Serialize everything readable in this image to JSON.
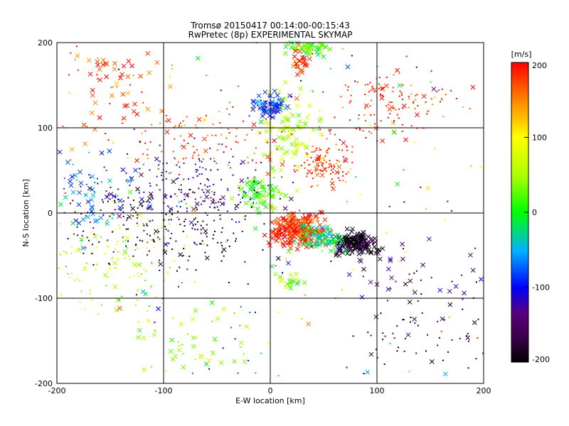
{
  "title_line1": "Tromsø 20150417 00:14:00-00:15:43",
  "title_line2": "RwPretec (8p) EXPERIMENTAL SKYMAP",
  "chart_data": {
    "type": "scatter",
    "xlabel": "E-W location [km]",
    "ylabel": "N-S location [km]",
    "xlim": [
      -200,
      200
    ],
    "ylim": [
      -200,
      200
    ],
    "xticks": [
      "-200",
      "-100",
      "0",
      "100",
      "200"
    ],
    "yticks": [
      "-200",
      "-100",
      "0",
      "100",
      "200"
    ],
    "grid": true,
    "colorbar": {
      "unit": "[m/s]",
      "range": [
        -200,
        200
      ],
      "ticks": [
        "200",
        "100",
        "0",
        "-100",
        "-200"
      ],
      "colormap": "rainbow (black-purple-blue-cyan-green-yellow-orange-red)"
    },
    "markers": [
      "dot",
      "x"
    ],
    "clusters": [
      {
        "x": 25,
        "y": -20,
        "spread": [
          12,
          10
        ],
        "velocity": 190,
        "count": 260,
        "marker": "x"
      },
      {
        "x": 80,
        "y": -35,
        "spread": [
          10,
          6
        ],
        "velocity": -200,
        "count": 200,
        "marker": "x"
      },
      {
        "x": 50,
        "y": -30,
        "spread": [
          10,
          8
        ],
        "velocity": -20,
        "count": 90,
        "marker": "x"
      },
      {
        "x": 0,
        "y": 125,
        "spread": [
          8,
          8
        ],
        "velocity": -90,
        "count": 80,
        "marker": "x"
      },
      {
        "x": 35,
        "y": 195,
        "spread": [
          12,
          5
        ],
        "velocity": 20,
        "count": 70,
        "marker": "x"
      },
      {
        "x": 30,
        "y": 180,
        "spread": [
          5,
          8
        ],
        "velocity": 190,
        "count": 30,
        "marker": "x"
      },
      {
        "x": 50,
        "y": 60,
        "spread": [
          12,
          15
        ],
        "velocity": 190,
        "count": 110,
        "marker": "dot"
      },
      {
        "x": 110,
        "y": 130,
        "spread": [
          30,
          20
        ],
        "velocity": 195,
        "count": 130,
        "marker": "dot"
      },
      {
        "x": 20,
        "y": 100,
        "spread": [
          15,
          20
        ],
        "velocity": 60,
        "count": 90,
        "marker": "x"
      },
      {
        "x": -10,
        "y": 25,
        "spread": [
          12,
          10
        ],
        "velocity": 20,
        "count": 80,
        "marker": "x"
      },
      {
        "x": -95,
        "y": -10,
        "spread": [
          45,
          30
        ],
        "velocity": -190,
        "count": 230,
        "marker": "dot"
      },
      {
        "x": -80,
        "y": 30,
        "spread": [
          40,
          25
        ],
        "velocity": -120,
        "count": 150,
        "marker": "dot"
      },
      {
        "x": -60,
        "y": 80,
        "spread": [
          40,
          25
        ],
        "velocity": 180,
        "count": 120,
        "marker": "dot"
      },
      {
        "x": -150,
        "y": 150,
        "spread": [
          25,
          30
        ],
        "velocity": 175,
        "count": 70,
        "marker": "x"
      },
      {
        "x": -150,
        "y": -50,
        "spread": [
          35,
          30
        ],
        "velocity": 70,
        "count": 140,
        "marker": "dot"
      },
      {
        "x": -170,
        "y": 20,
        "spread": [
          20,
          30
        ],
        "velocity": -60,
        "count": 60,
        "marker": "x"
      },
      {
        "x": -70,
        "y": -150,
        "spread": [
          30,
          25
        ],
        "velocity": 40,
        "count": 50,
        "marker": "x"
      },
      {
        "x": 150,
        "y": -130,
        "spread": [
          35,
          25
        ],
        "velocity": -180,
        "count": 60,
        "marker": "dot"
      },
      {
        "x": 120,
        "y": -70,
        "spread": [
          40,
          20
        ],
        "velocity": -150,
        "count": 40,
        "marker": "x"
      },
      {
        "x": 18,
        "y": -80,
        "spread": [
          5,
          5
        ],
        "velocity": 40,
        "count": 25,
        "marker": "x"
      },
      {
        "x": 0,
        "y": 0,
        "spread": [
          180,
          180
        ],
        "velocity": 0,
        "count": 320,
        "marker": "dot"
      }
    ]
  }
}
